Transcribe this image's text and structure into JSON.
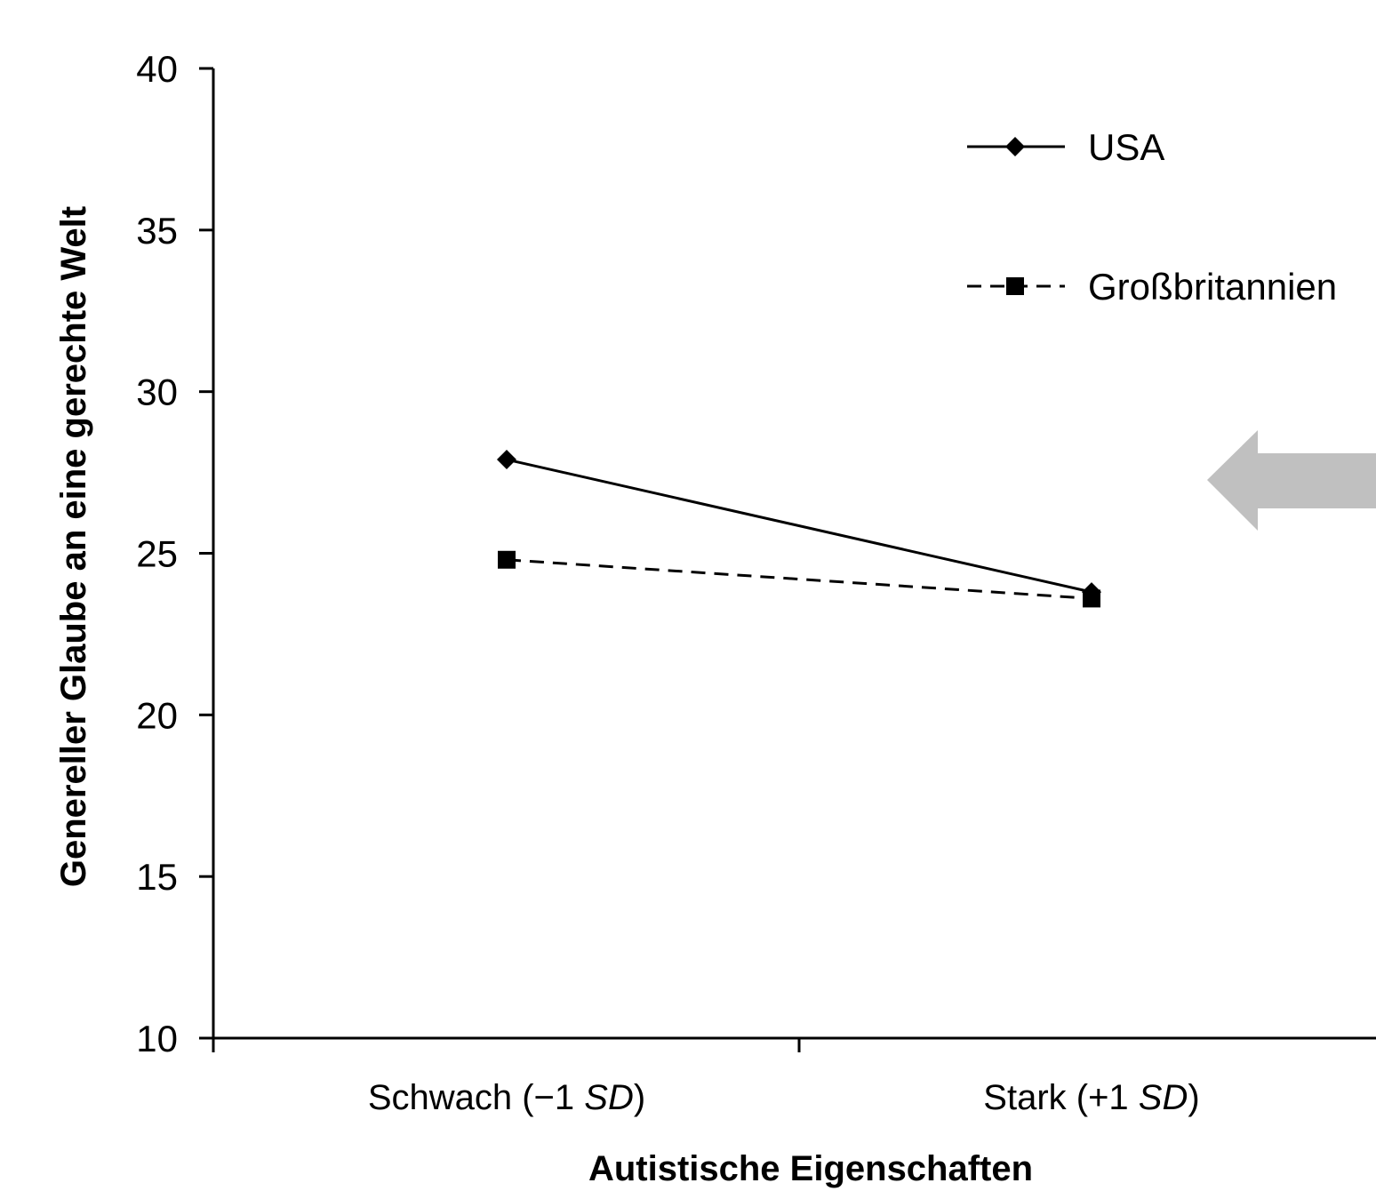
{
  "chart_data": {
    "type": "line",
    "title": "",
    "xlabel": "Autistische Eigenschaften",
    "ylabel": "Genereller Glaube an eine gerechte Welt",
    "categories": [
      {
        "text": "Schwach (−1 ",
        "italic": "SD",
        "close": ")"
      },
      {
        "text": "Stark (+1 ",
        "italic": "SD",
        "close": ")"
      }
    ],
    "ylim": [
      10,
      40
    ],
    "yticks": [
      10,
      15,
      20,
      25,
      30,
      35,
      40
    ],
    "grid": false,
    "legend_position": "top-right",
    "series": [
      {
        "name": "USA",
        "values": [
          27.9,
          23.8
        ],
        "line_style": "solid",
        "marker": "diamond",
        "color": "#000000"
      },
      {
        "name": "Großbritannien",
        "values": [
          24.8,
          23.6
        ],
        "line_style": "dashed",
        "marker": "square",
        "color": "#000000"
      }
    ],
    "annotation": {
      "type": "arrow",
      "direction": "left",
      "color": "#c0c0c0"
    }
  }
}
